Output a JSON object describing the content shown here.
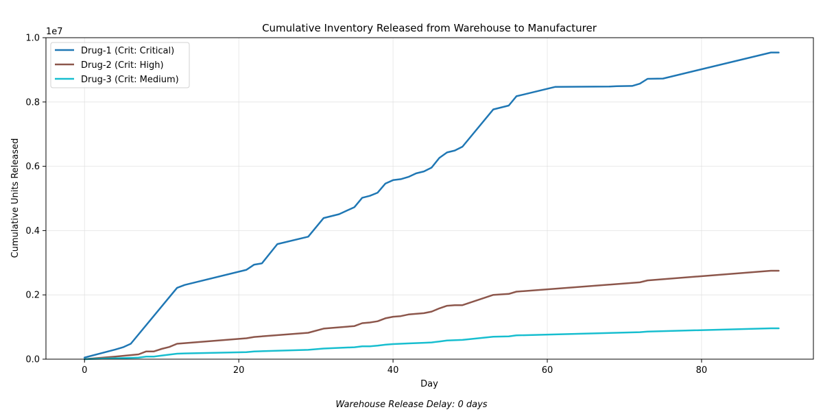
{
  "chart_data": {
    "type": "line",
    "title": "Cumulative Inventory Released from Warehouse to Manufacturer",
    "xlabel": "Day",
    "ylabel": "Cumulative Units Released",
    "y_scale_label": "1e7",
    "footnote": "Warehouse Release Delay: 0 days",
    "xlim": [
      -5,
      94.5
    ],
    "ylim": [
      0,
      1.0
    ],
    "x_ticks": [
      0,
      20,
      40,
      60,
      80
    ],
    "y_ticks": [
      0.0,
      0.2,
      0.4,
      0.6,
      0.8,
      1.0
    ],
    "x_tick_labels": [
      "0",
      "20",
      "40",
      "60",
      "80"
    ],
    "y_tick_labels": [
      "0.0",
      "0.2",
      "0.4",
      "0.6",
      "0.8",
      "1.0"
    ],
    "grid": true,
    "legend_position": "top-left",
    "series": [
      {
        "name": "Drug-1 (Crit: Critical)",
        "color": "#1f77b4",
        "points": [
          [
            0,
            0.005
          ],
          [
            4,
            0.03
          ],
          [
            5,
            0.037
          ],
          [
            6,
            0.048
          ],
          [
            12,
            0.222
          ],
          [
            13,
            0.231
          ],
          [
            21,
            0.278
          ],
          [
            22,
            0.294
          ],
          [
            23,
            0.298
          ],
          [
            25,
            0.358
          ],
          [
            29,
            0.381
          ],
          [
            31,
            0.439
          ],
          [
            33,
            0.451
          ],
          [
            35,
            0.473
          ],
          [
            36,
            0.502
          ],
          [
            37,
            0.508
          ],
          [
            38,
            0.518
          ],
          [
            39,
            0.546
          ],
          [
            40,
            0.557
          ],
          [
            41,
            0.56
          ],
          [
            42,
            0.567
          ],
          [
            43,
            0.578
          ],
          [
            44,
            0.584
          ],
          [
            45,
            0.596
          ],
          [
            46,
            0.626
          ],
          [
            47,
            0.643
          ],
          [
            48,
            0.649
          ],
          [
            49,
            0.661
          ],
          [
            53,
            0.777
          ],
          [
            55,
            0.789
          ],
          [
            56,
            0.818
          ],
          [
            61,
            0.847
          ],
          [
            68,
            0.848
          ],
          [
            69,
            0.849
          ],
          [
            71,
            0.85
          ],
          [
            72,
            0.857
          ],
          [
            73,
            0.872
          ],
          [
            75,
            0.873
          ],
          [
            89,
            0.954
          ],
          [
            90,
            0.954
          ]
        ]
      },
      {
        "name": "Drug-2 (Crit: High)",
        "color": "#8c564b",
        "points": [
          [
            0,
            0.0
          ],
          [
            4,
            0.008
          ],
          [
            7,
            0.015
          ],
          [
            8,
            0.024
          ],
          [
            9,
            0.024
          ],
          [
            10,
            0.032
          ],
          [
            11,
            0.038
          ],
          [
            12,
            0.048
          ],
          [
            13,
            0.05
          ],
          [
            21,
            0.065
          ],
          [
            22,
            0.069
          ],
          [
            29,
            0.082
          ],
          [
            31,
            0.095
          ],
          [
            35,
            0.103
          ],
          [
            36,
            0.112
          ],
          [
            37,
            0.114
          ],
          [
            38,
            0.118
          ],
          [
            39,
            0.127
          ],
          [
            40,
            0.132
          ],
          [
            41,
            0.134
          ],
          [
            42,
            0.139
          ],
          [
            44,
            0.143
          ],
          [
            45,
            0.148
          ],
          [
            46,
            0.158
          ],
          [
            47,
            0.166
          ],
          [
            48,
            0.168
          ],
          [
            49,
            0.168
          ],
          [
            53,
            0.2
          ],
          [
            55,
            0.203
          ],
          [
            56,
            0.21
          ],
          [
            72,
            0.239
          ],
          [
            73,
            0.245
          ],
          [
            89,
            0.275
          ],
          [
            90,
            0.275
          ]
        ]
      },
      {
        "name": "Drug-3 (Crit: Medium)",
        "color": "#17becf",
        "points": [
          [
            0,
            0.0
          ],
          [
            7,
            0.005
          ],
          [
            8,
            0.008
          ],
          [
            9,
            0.008
          ],
          [
            10,
            0.011
          ],
          [
            12,
            0.017
          ],
          [
            13,
            0.018
          ],
          [
            21,
            0.022
          ],
          [
            22,
            0.024
          ],
          [
            29,
            0.029
          ],
          [
            31,
            0.033
          ],
          [
            35,
            0.037
          ],
          [
            36,
            0.04
          ],
          [
            37,
            0.04
          ],
          [
            38,
            0.042
          ],
          [
            39,
            0.045
          ],
          [
            40,
            0.047
          ],
          [
            41,
            0.048
          ],
          [
            42,
            0.049
          ],
          [
            44,
            0.051
          ],
          [
            45,
            0.052
          ],
          [
            46,
            0.055
          ],
          [
            47,
            0.058
          ],
          [
            49,
            0.06
          ],
          [
            53,
            0.07
          ],
          [
            55,
            0.071
          ],
          [
            56,
            0.074
          ],
          [
            72,
            0.084
          ],
          [
            73,
            0.086
          ],
          [
            89,
            0.096
          ],
          [
            90,
            0.096
          ]
        ]
      }
    ]
  }
}
